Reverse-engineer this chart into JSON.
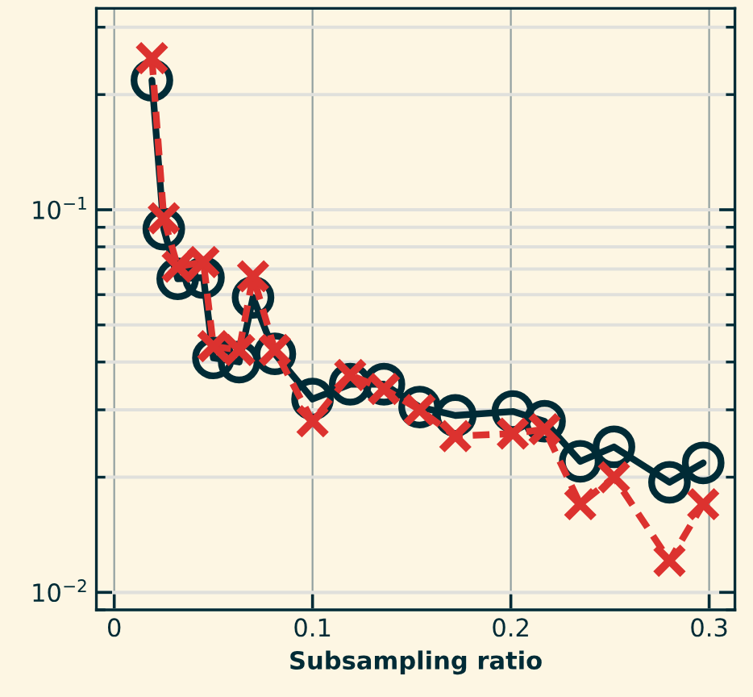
{
  "chart_data": {
    "type": "line",
    "xlabel": "Subsampling ratio",
    "log": "y",
    "grid": true,
    "legend": false,
    "xlim": [
      -0.009,
      0.313
    ],
    "xticks": [
      0,
      0.1,
      0.2,
      0.3
    ],
    "ylim": [
      0.009,
      0.336
    ],
    "yticks": [
      {
        "value": 0.01,
        "label": "10$^{−2}$"
      },
      {
        "value": 0.1,
        "label": "10$^{−1}$"
      }
    ],
    "series": [
      {
        "color": "#002b36",
        "marker": "circle",
        "line_style": "solid",
        "x": [
          0.019,
          0.025,
          0.032,
          0.045,
          0.05,
          0.063,
          0.07,
          0.081,
          0.1,
          0.119,
          0.136,
          0.154,
          0.172,
          0.201,
          0.217,
          0.235,
          0.252,
          0.28,
          0.297
        ],
        "values": [
          0.218,
          0.089,
          0.066,
          0.0665,
          0.041,
          0.04,
          0.059,
          0.042,
          0.032,
          0.035,
          0.035,
          0.0305,
          0.029,
          0.0297,
          0.028,
          0.022,
          0.024,
          0.0194,
          0.0218
        ]
      },
      {
        "color": "#dc322f",
        "marker": "cross",
        "line_style": "dashed",
        "x": [
          0.019,
          0.025,
          0.032,
          0.045,
          0.05,
          0.063,
          0.07,
          0.081,
          0.1,
          0.119,
          0.136,
          0.154,
          0.172,
          0.201,
          0.217,
          0.235,
          0.252,
          0.28,
          0.297
        ],
        "values": [
          0.249,
          0.095,
          0.071,
          0.073,
          0.044,
          0.043,
          0.067,
          0.043,
          0.028,
          0.037,
          0.034,
          0.03,
          0.0256,
          0.026,
          0.0267,
          0.017,
          0.02,
          0.0121,
          0.017
        ]
      }
    ]
  }
}
